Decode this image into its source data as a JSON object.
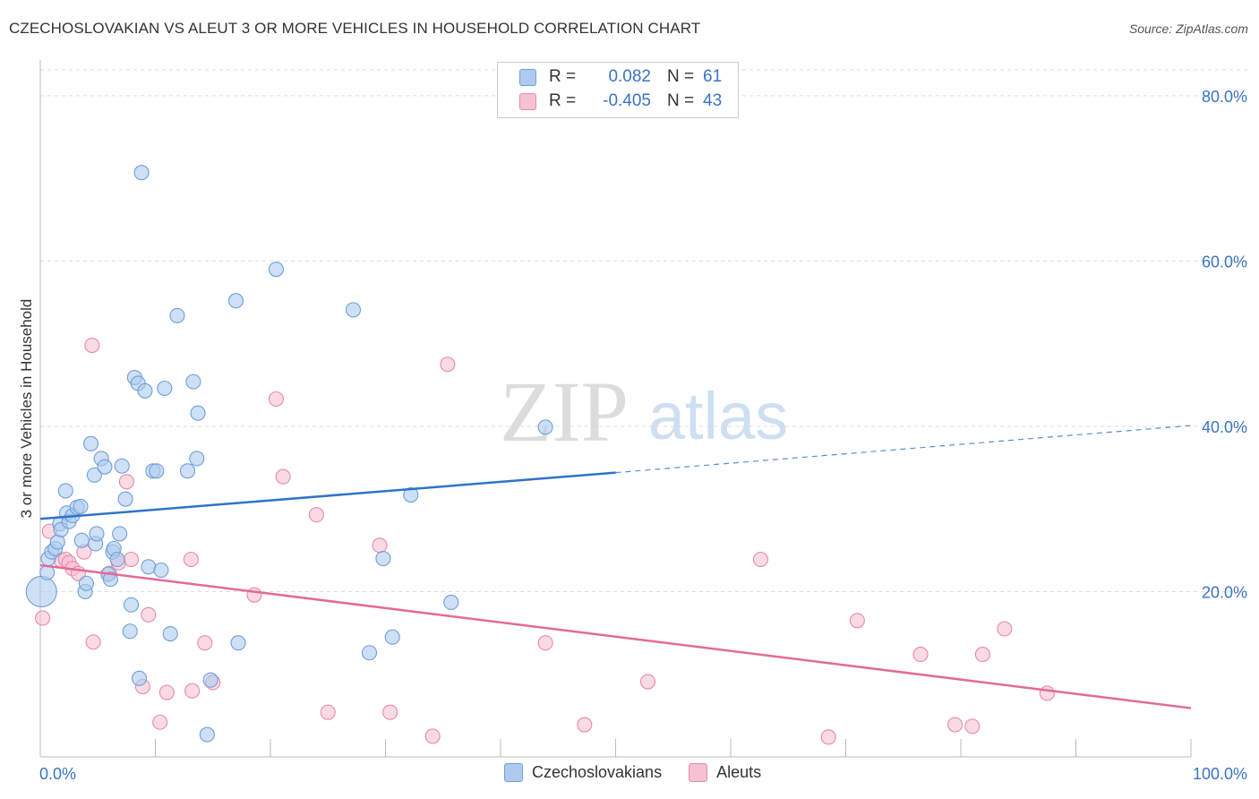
{
  "title": "CZECHOSLOVAKIAN VS ALEUT 3 OR MORE VEHICLES IN HOUSEHOLD CORRELATION CHART",
  "source": "Source: ZipAtlas.com",
  "watermark": {
    "zip": "ZIP",
    "atlas": "atlas"
  },
  "colors": {
    "blue_fill": "#aecbef",
    "blue_stroke": "#6f9fd8",
    "blue_line": "#2f73c9",
    "pink_fill": "#f6c1d1",
    "pink_stroke": "#e88aa9",
    "pink_line": "#e36a95",
    "accent_text": "#3b73c4"
  },
  "legend": {
    "rows": [
      {
        "r_label": "R =",
        "r_value": "0.082",
        "n_label": "N =",
        "n_value": "61",
        "color": "#aecbef",
        "border": "#6f9fd8"
      },
      {
        "r_label": "R =",
        "r_value": "-0.405",
        "n_label": "N =",
        "n_value": "43",
        "color": "#f6c1d1",
        "border": "#e88aa9"
      }
    ]
  },
  "bottom_legend": [
    {
      "label": "Czechoslovakians",
      "color": "#aecbef",
      "border": "#6f9fd8"
    },
    {
      "label": "Aleuts",
      "color": "#f6c1d1",
      "border": "#e88aa9"
    }
  ],
  "chart_data": {
    "type": "scatter",
    "title": "CZECHOSLOVAKIAN VS ALEUT 3 OR MORE VEHICLES IN HOUSEHOLD CORRELATION CHART",
    "xlabel": "",
    "ylabel": "3 or more Vehicles in Household",
    "xlim": [
      0,
      100
    ],
    "ylim": [
      0,
      84
    ],
    "x_tick_labels": [
      "0.0%",
      "100.0%"
    ],
    "y_ticks": [
      20,
      40,
      60,
      80
    ],
    "y_tick_labels": [
      "20.0%",
      "40.0%",
      "60.0%",
      "80.0%"
    ],
    "grid": true,
    "series": [
      {
        "name": "Czechoslovakians",
        "points": [
          [
            0.1,
            20.0,
            3
          ],
          [
            0.6,
            22.3,
            1
          ],
          [
            0.7,
            24.0,
            1
          ],
          [
            1.0,
            24.8,
            1
          ],
          [
            1.3,
            25.2,
            1
          ],
          [
            1.5,
            26.0,
            1
          ],
          [
            1.7,
            28.2,
            1
          ],
          [
            1.8,
            27.5,
            1
          ],
          [
            2.2,
            32.2,
            1
          ],
          [
            2.3,
            29.5,
            1
          ],
          [
            2.5,
            28.5,
            1
          ],
          [
            2.8,
            29.2,
            1
          ],
          [
            3.2,
            30.2,
            1
          ],
          [
            3.5,
            30.3,
            1
          ],
          [
            3.6,
            26.2,
            1
          ],
          [
            3.9,
            20.0,
            1
          ],
          [
            4.0,
            21.0,
            1
          ],
          [
            4.4,
            37.9,
            1
          ],
          [
            4.7,
            34.1,
            1
          ],
          [
            4.8,
            25.8,
            1
          ],
          [
            4.9,
            27.0,
            1
          ],
          [
            5.3,
            36.1,
            1
          ],
          [
            5.6,
            35.1,
            1
          ],
          [
            5.9,
            22.1,
            1
          ],
          [
            6.1,
            21.5,
            1
          ],
          [
            6.3,
            24.8,
            1
          ],
          [
            6.4,
            25.2,
            1
          ],
          [
            6.7,
            23.9,
            1
          ],
          [
            6.9,
            27.0,
            1
          ],
          [
            7.1,
            35.2,
            1
          ],
          [
            7.4,
            31.2,
            1
          ],
          [
            7.8,
            15.2,
            1
          ],
          [
            7.9,
            18.4,
            1
          ],
          [
            8.2,
            45.9,
            1
          ],
          [
            8.5,
            45.2,
            1
          ],
          [
            8.6,
            9.5,
            1
          ],
          [
            8.8,
            70.7,
            1
          ],
          [
            9.1,
            44.3,
            1
          ],
          [
            9.4,
            23.0,
            1
          ],
          [
            9.8,
            34.6,
            1
          ],
          [
            10.1,
            34.6,
            1
          ],
          [
            10.5,
            22.6,
            1
          ],
          [
            10.8,
            44.6,
            1
          ],
          [
            11.3,
            14.9,
            1
          ],
          [
            11.9,
            53.4,
            1
          ],
          [
            12.8,
            34.6,
            1
          ],
          [
            13.3,
            45.4,
            1
          ],
          [
            13.6,
            36.1,
            1
          ],
          [
            13.7,
            41.6,
            1
          ],
          [
            14.5,
            2.7,
            1
          ],
          [
            14.8,
            9.3,
            1
          ],
          [
            17.0,
            55.2,
            1
          ],
          [
            17.2,
            13.8,
            1
          ],
          [
            20.5,
            59.0,
            1
          ],
          [
            27.2,
            54.1,
            1
          ],
          [
            28.6,
            12.6,
            1
          ],
          [
            29.8,
            24.0,
            1
          ],
          [
            30.6,
            14.5,
            1
          ],
          [
            32.2,
            31.7,
            1
          ],
          [
            35.7,
            18.7,
            1
          ],
          [
            43.9,
            39.9,
            1
          ]
        ],
        "trend": {
          "x": [
            0,
            50.0
          ],
          "y": [
            28.8,
            34.4
          ],
          "dashed_extension": {
            "x": [
              50.0,
              100
            ],
            "y": [
              34.4,
              40.1
            ]
          }
        }
      },
      {
        "name": "Aleuts",
        "points": [
          [
            0.2,
            16.8,
            1
          ],
          [
            0.8,
            27.3,
            1
          ],
          [
            1.8,
            23.8,
            1
          ],
          [
            2.2,
            23.9,
            1
          ],
          [
            2.5,
            23.5,
            1
          ],
          [
            2.8,
            22.8,
            1
          ],
          [
            3.3,
            22.2,
            1
          ],
          [
            3.8,
            24.8,
            1
          ],
          [
            4.5,
            49.8,
            1
          ],
          [
            4.6,
            13.9,
            1
          ],
          [
            6.0,
            22.2,
            1
          ],
          [
            6.8,
            23.5,
            1
          ],
          [
            7.5,
            33.3,
            1
          ],
          [
            7.9,
            23.9,
            1
          ],
          [
            8.9,
            8.5,
            1
          ],
          [
            9.4,
            17.2,
            1
          ],
          [
            10.4,
            4.2,
            1
          ],
          [
            11.0,
            7.8,
            1
          ],
          [
            13.1,
            23.9,
            1
          ],
          [
            13.2,
            8.0,
            1
          ],
          [
            14.3,
            13.8,
            1
          ],
          [
            15.0,
            9.0,
            1
          ],
          [
            18.6,
            19.6,
            1
          ],
          [
            20.5,
            43.3,
            1
          ],
          [
            21.1,
            33.9,
            1
          ],
          [
            24.0,
            29.3,
            1
          ],
          [
            25.0,
            5.4,
            1
          ],
          [
            29.5,
            25.6,
            1
          ],
          [
            30.4,
            5.4,
            1
          ],
          [
            34.1,
            2.5,
            1
          ],
          [
            35.4,
            47.5,
            1
          ],
          [
            43.9,
            13.8,
            1
          ],
          [
            47.3,
            3.9,
            1
          ],
          [
            52.8,
            9.1,
            1
          ],
          [
            62.6,
            23.9,
            1
          ],
          [
            68.5,
            2.4,
            1
          ],
          [
            71.0,
            16.5,
            1
          ],
          [
            76.5,
            12.4,
            1
          ],
          [
            79.5,
            3.9,
            1
          ],
          [
            81.0,
            3.7,
            1
          ],
          [
            81.9,
            12.4,
            1
          ],
          [
            83.8,
            15.5,
            1
          ],
          [
            87.5,
            7.7,
            1
          ]
        ],
        "trend": {
          "x": [
            0,
            100
          ],
          "y": [
            23.2,
            5.9
          ]
        }
      }
    ]
  }
}
